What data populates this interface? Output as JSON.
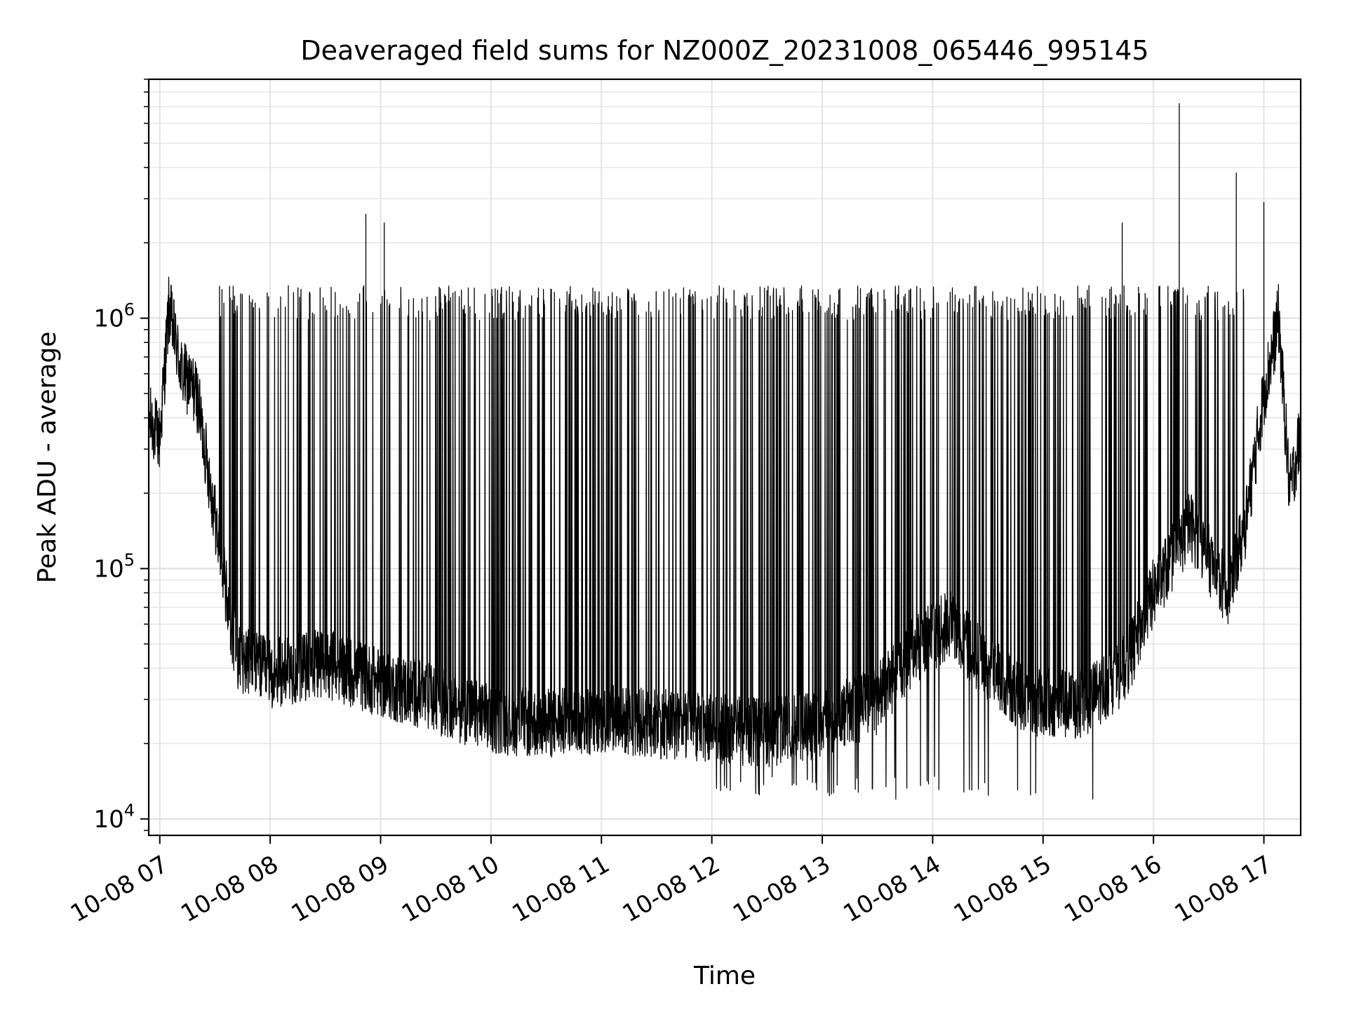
{
  "chart_data": {
    "type": "line",
    "title": "Deaveraged field sums for NZ000Z_20231008_065446_995145",
    "xlabel": "Time",
    "ylabel": "Peak ADU - average",
    "yscale": "log",
    "ylim": [
      8600,
      9000000
    ],
    "xlim": [
      "2023-10-08 06:54",
      "2023-10-08 17:20"
    ],
    "x_ticks": [
      "10-08 07",
      "10-08 08",
      "10-08 09",
      "10-08 10",
      "10-08 11",
      "10-08 12",
      "10-08 13",
      "10-08 14",
      "10-08 15",
      "10-08 16",
      "10-08 17"
    ],
    "y_ticks": [
      {
        "value": 10000,
        "base": "10",
        "exp": "4"
      },
      {
        "value": 100000,
        "base": "10",
        "exp": "5"
      },
      {
        "value": 1000000,
        "base": "10",
        "exp": "6"
      }
    ],
    "grid": true,
    "line_color": "#000000",
    "series": [
      {
        "baseline": [
          {
            "x": "2023-10-08 06:54",
            "y": 400000
          },
          {
            "x": "2023-10-08 07:00",
            "y": 330000
          },
          {
            "x": "2023-10-08 07:05",
            "y": 1100000
          },
          {
            "x": "2023-10-08 07:12",
            "y": 600000
          },
          {
            "x": "2023-10-08 07:20",
            "y": 500000
          },
          {
            "x": "2023-10-08 07:27",
            "y": 230000
          },
          {
            "x": "2023-10-08 07:35",
            "y": 90000
          },
          {
            "x": "2023-10-08 07:42",
            "y": 45000
          },
          {
            "x": "2023-10-08 08:00",
            "y": 38000
          },
          {
            "x": "2023-10-08 08:30",
            "y": 42000
          },
          {
            "x": "2023-10-08 09:00",
            "y": 35000
          },
          {
            "x": "2023-10-08 09:30",
            "y": 30000
          },
          {
            "x": "2023-10-08 10:00",
            "y": 25000
          },
          {
            "x": "2023-10-08 10:30",
            "y": 24000
          },
          {
            "x": "2023-10-08 11:00",
            "y": 25000
          },
          {
            "x": "2023-10-08 11:30",
            "y": 24000
          },
          {
            "x": "2023-10-08 12:00",
            "y": 23000
          },
          {
            "x": "2023-10-08 12:30",
            "y": 22000
          },
          {
            "x": "2023-10-08 13:00",
            "y": 24000
          },
          {
            "x": "2023-10-08 13:30",
            "y": 30000
          },
          {
            "x": "2023-10-08 13:50",
            "y": 48000
          },
          {
            "x": "2023-10-08 14:10",
            "y": 60000
          },
          {
            "x": "2023-10-08 14:30",
            "y": 40000
          },
          {
            "x": "2023-10-08 14:50",
            "y": 30000
          },
          {
            "x": "2023-10-08 15:20",
            "y": 28000
          },
          {
            "x": "2023-10-08 15:45",
            "y": 40000
          },
          {
            "x": "2023-10-08 16:00",
            "y": 80000
          },
          {
            "x": "2023-10-08 16:20",
            "y": 150000
          },
          {
            "x": "2023-10-08 16:40",
            "y": 80000
          },
          {
            "x": "2023-10-08 16:50",
            "y": 150000
          },
          {
            "x": "2023-10-08 17:00",
            "y": 500000
          },
          {
            "x": "2023-10-08 17:08",
            "y": 1000000
          },
          {
            "x": "2023-10-08 17:14",
            "y": 200000
          },
          {
            "x": "2023-10-08 17:20",
            "y": 350000
          }
        ],
        "spikes": [
          {
            "x": "2023-10-08 08:52",
            "y": 2600000
          },
          {
            "x": "2023-10-08 09:02",
            "y": 2400000
          },
          {
            "x": "2023-10-08 15:43",
            "y": 2400000
          },
          {
            "x": "2023-10-08 16:14",
            "y": 7200000
          },
          {
            "x": "2023-10-08 16:45",
            "y": 3800000
          },
          {
            "x": "2023-10-08 17:00",
            "y": 2900000
          }
        ],
        "dense_peak_level": 1150000,
        "low_points": [
          {
            "x": "2023-10-08 12:10",
            "y": 13000
          },
          {
            "x": "2023-10-08 13:40",
            "y": 12000
          },
          {
            "x": "2023-10-08 15:27",
            "y": 12000
          }
        ]
      }
    ]
  }
}
